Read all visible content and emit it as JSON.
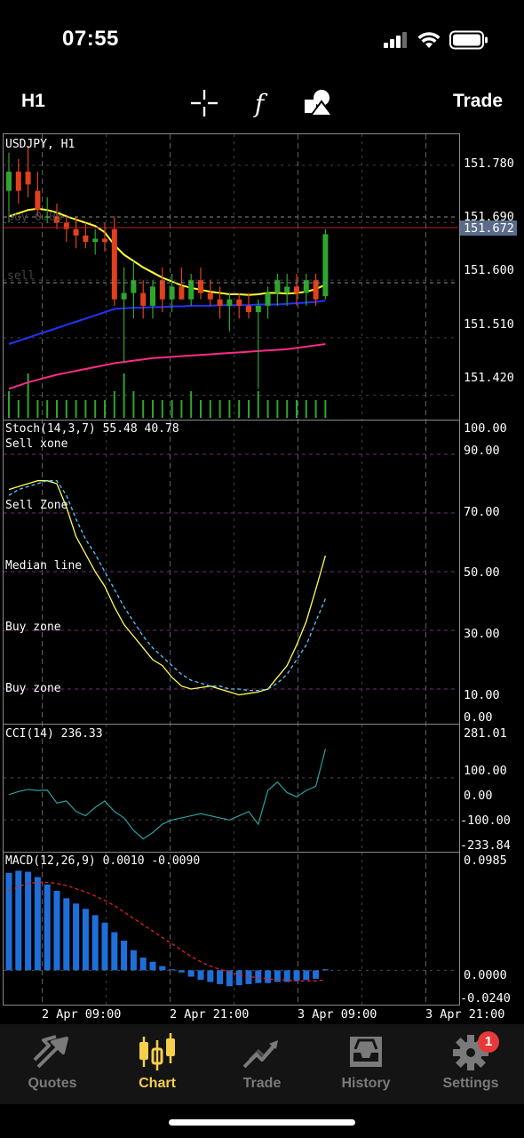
{
  "status_bar": {
    "time": "07:55"
  },
  "toolbar": {
    "timeframe": "H1",
    "trade_label": "Trade",
    "icons": [
      "crosshair-icon",
      "function-icon",
      "objects-icon"
    ],
    "function_glyph": "f"
  },
  "chart": {
    "symbol_label": "USDJPY, H1",
    "buy_label": "buy 0.05",
    "sell_label": "sell",
    "current_price": "151.672",
    "price_axis": [
      "151.780",
      "151.690",
      "151.600",
      "151.510",
      "151.420"
    ],
    "stoch": {
      "label": "Stoch(14,3,7) 55.48 40.78",
      "levels": [
        {
          "value": "100.00",
          "label": ""
        },
        {
          "value": "90.00",
          "label": "Sell xone"
        },
        {
          "value": "70.00",
          "label": "Sell Zone"
        },
        {
          "value": "50.00",
          "label": "Median line"
        },
        {
          "value": "30.00",
          "label": "Buy zone"
        },
        {
          "value": "10.00",
          "label": "Buy zone"
        },
        {
          "value": "0.00",
          "label": ""
        }
      ]
    },
    "cci": {
      "label": "CCI(14) 236.33",
      "axis": [
        "281.01",
        "100.00",
        "0.00",
        "-100.00",
        "-233.84"
      ]
    },
    "macd": {
      "label": "MACD(12,26,9) 0.0010 -0.0090",
      "axis": [
        "0.0985",
        "0.0000",
        "-0.0240"
      ]
    },
    "time_axis": [
      "2 Apr 09:00",
      "2 Apr 21:00",
      "3 Apr 09:00",
      "3 Apr 21:00"
    ],
    "colors": {
      "bull": "#2ea62e",
      "bear": "#e0401c",
      "ema_fast": "#ffff33",
      "ema_mid": "#2233ff",
      "ema_slow": "#ff2a8a",
      "volume": "#2ea62e",
      "grid": "#6a6a6a",
      "macd_hist": "#1e6fd9",
      "macd_signal": "#e02020",
      "stoch_main": "#ffff55",
      "stoch_signal": "#55c8ff",
      "cci_line": "#2aa0a0",
      "level_line": "#7a2a7a"
    }
  },
  "chart_data": [
    {
      "type": "candlestick",
      "title": "USDJPY, H1",
      "ylim": [
        151.39,
        151.83
      ],
      "ohlc": [
        [
          151.74,
          151.8,
          151.69,
          151.77
        ],
        [
          151.77,
          151.79,
          151.72,
          151.74
        ],
        [
          151.77,
          151.81,
          151.73,
          151.75
        ],
        [
          151.74,
          151.77,
          151.7,
          151.71
        ],
        [
          151.7,
          151.73,
          151.69,
          151.7
        ],
        [
          151.7,
          151.72,
          151.68,
          151.69
        ],
        [
          151.69,
          151.7,
          151.66,
          151.68
        ],
        [
          151.68,
          151.7,
          151.65,
          151.67
        ],
        [
          151.67,
          151.69,
          151.65,
          151.66
        ],
        [
          151.66,
          151.68,
          151.64,
          151.665
        ],
        [
          151.665,
          151.69,
          151.645,
          151.66
        ],
        [
          151.68,
          151.7,
          151.56,
          151.57
        ],
        [
          151.57,
          151.62,
          151.47,
          151.58
        ],
        [
          151.58,
          151.63,
          151.54,
          151.6
        ],
        [
          151.58,
          151.6,
          151.54,
          151.56
        ],
        [
          151.56,
          151.6,
          151.54,
          151.59
        ],
        [
          151.6,
          151.62,
          151.55,
          151.57
        ],
        [
          151.57,
          151.61,
          151.55,
          151.59
        ],
        [
          151.59,
          151.62,
          151.57,
          151.57
        ],
        [
          151.57,
          151.61,
          151.56,
          151.6
        ],
        [
          151.6,
          151.62,
          151.57,
          151.58
        ],
        [
          151.58,
          151.6,
          151.56,
          151.57
        ],
        [
          151.57,
          151.59,
          151.54,
          151.56
        ],
        [
          151.56,
          151.58,
          151.52,
          151.57
        ],
        [
          151.57,
          151.58,
          151.54,
          151.56
        ],
        [
          151.56,
          151.58,
          151.54,
          151.55
        ],
        [
          151.55,
          151.57,
          151.43,
          151.56
        ],
        [
          151.56,
          151.59,
          151.54,
          151.58
        ],
        [
          151.58,
          151.61,
          151.56,
          151.6
        ],
        [
          151.58,
          151.61,
          151.56,
          151.59
        ],
        [
          151.59,
          151.61,
          151.56,
          151.58
        ],
        [
          151.58,
          151.61,
          151.56,
          151.6
        ],
        [
          151.6,
          151.61,
          151.56,
          151.57
        ],
        [
          151.575,
          151.68,
          151.57,
          151.672
        ]
      ],
      "volume": [
        3,
        2,
        5,
        2,
        2,
        2,
        2,
        2,
        2,
        2,
        2,
        3,
        5,
        3,
        2,
        2,
        2,
        2,
        2,
        3,
        2,
        2,
        2,
        2,
        2,
        2,
        3,
        2,
        2,
        2,
        2,
        2,
        2,
        2
      ],
      "series": [
        {
          "values": [
            151.7,
            151.705,
            151.71,
            151.712,
            151.71,
            151.706,
            151.7,
            151.695,
            151.69,
            151.685,
            151.675,
            151.655,
            151.64,
            151.63,
            151.62,
            151.612,
            151.604,
            151.598,
            151.592,
            151.588,
            151.585,
            151.582,
            151.58,
            151.578,
            151.578,
            151.577,
            151.578,
            151.58,
            151.58,
            151.579,
            151.58,
            151.582,
            151.586,
            151.593
          ]
        },
        {
          "values": [
            151.5,
            151.505,
            151.51,
            151.515,
            151.52,
            151.525,
            151.53,
            151.535,
            151.54,
            151.545,
            151.55,
            151.555,
            151.556,
            151.557,
            151.557,
            151.558,
            151.558,
            151.559,
            151.559,
            151.56,
            151.56,
            151.56,
            151.561,
            151.561,
            151.561,
            151.561,
            151.562,
            151.562,
            151.562,
            151.563,
            151.564,
            151.565,
            151.566,
            151.568
          ]
        },
        {
          "values": [
            151.43,
            151.435,
            151.44,
            151.444,
            151.448,
            151.452,
            151.455,
            151.458,
            151.461,
            151.464,
            151.467,
            151.47,
            151.472,
            151.474,
            151.476,
            151.478,
            151.479,
            151.48,
            151.481,
            151.482,
            151.483,
            151.484,
            151.485,
            151.486,
            151.487,
            151.488,
            151.489,
            151.49,
            151.491,
            151.492,
            151.494,
            151.496,
            151.498,
            151.5
          ]
        }
      ]
    },
    {
      "type": "line",
      "title": "Stoch(14,3,7) 55.48 40.78",
      "ylim": [
        0,
        100
      ],
      "series": [
        {
          "values": [
            78,
            79,
            80,
            81,
            81,
            80,
            72,
            62,
            56,
            50,
            45,
            38,
            32,
            28,
            24,
            20,
            18,
            14,
            11,
            10,
            10.5,
            11,
            10,
            9,
            8,
            8.5,
            9,
            10,
            14,
            18,
            25,
            33,
            44,
            55.48
          ]
        },
        {
          "values": [
            76,
            78,
            79,
            80,
            81,
            81,
            76,
            68,
            61,
            56,
            50,
            44,
            38,
            33,
            28,
            24,
            21,
            18,
            15,
            13,
            12,
            11,
            11,
            10,
            10,
            9.5,
            9.5,
            10,
            12,
            15,
            20,
            25,
            33,
            40.78
          ]
        }
      ]
    },
    {
      "type": "line",
      "title": "CCI(14) 236.33",
      "ylim": [
        -233.84,
        281.01
      ],
      "series": [
        {
          "values": [
            20,
            35,
            45,
            40,
            42,
            -20,
            -10,
            -60,
            -80,
            -40,
            -10,
            -60,
            -90,
            -150,
            -190,
            -160,
            -120,
            -100,
            -90,
            -80,
            -70,
            -80,
            -90,
            -100,
            -80,
            -60,
            -120,
            40,
            80,
            30,
            10,
            40,
            60,
            236.33
          ]
        }
      ]
    },
    {
      "type": "bar",
      "title": "MACD(12,26,9) 0.0010 -0.0090",
      "ylim": [
        -0.024,
        0.0985
      ],
      "series": [
        {
          "values": [
            0.092,
            0.094,
            0.093,
            0.088,
            0.081,
            0.075,
            0.068,
            0.063,
            0.058,
            0.052,
            0.045,
            0.036,
            0.028,
            0.019,
            0.012,
            0.008,
            0.004,
            0.001,
            -0.002,
            -0.006,
            -0.009,
            -0.011,
            -0.013,
            -0.015,
            -0.014,
            -0.013,
            -0.012,
            -0.012,
            -0.011,
            -0.011,
            -0.01,
            -0.009,
            -0.008,
            0.001
          ]
        },
        {
          "values": [
            0.075,
            0.079,
            0.082,
            0.083,
            0.083,
            0.082,
            0.08,
            0.077,
            0.074,
            0.07,
            0.066,
            0.061,
            0.055,
            0.049,
            0.043,
            0.037,
            0.031,
            0.025,
            0.019,
            0.013,
            0.008,
            0.004,
            0.001,
            -0.002,
            -0.004,
            -0.006,
            -0.007,
            -0.008,
            -0.009,
            -0.009,
            -0.01,
            -0.01,
            -0.01,
            -0.009
          ]
        }
      ]
    }
  ],
  "tabs": [
    {
      "label": "Quotes",
      "icon": "quotes-icon",
      "active": false
    },
    {
      "label": "Chart",
      "icon": "chart-candles-icon",
      "active": true
    },
    {
      "label": "Trade",
      "icon": "trade-icon",
      "active": false
    },
    {
      "label": "History",
      "icon": "history-icon",
      "active": false
    },
    {
      "label": "Settings",
      "icon": "settings-icon",
      "active": false,
      "badge": "1"
    }
  ]
}
